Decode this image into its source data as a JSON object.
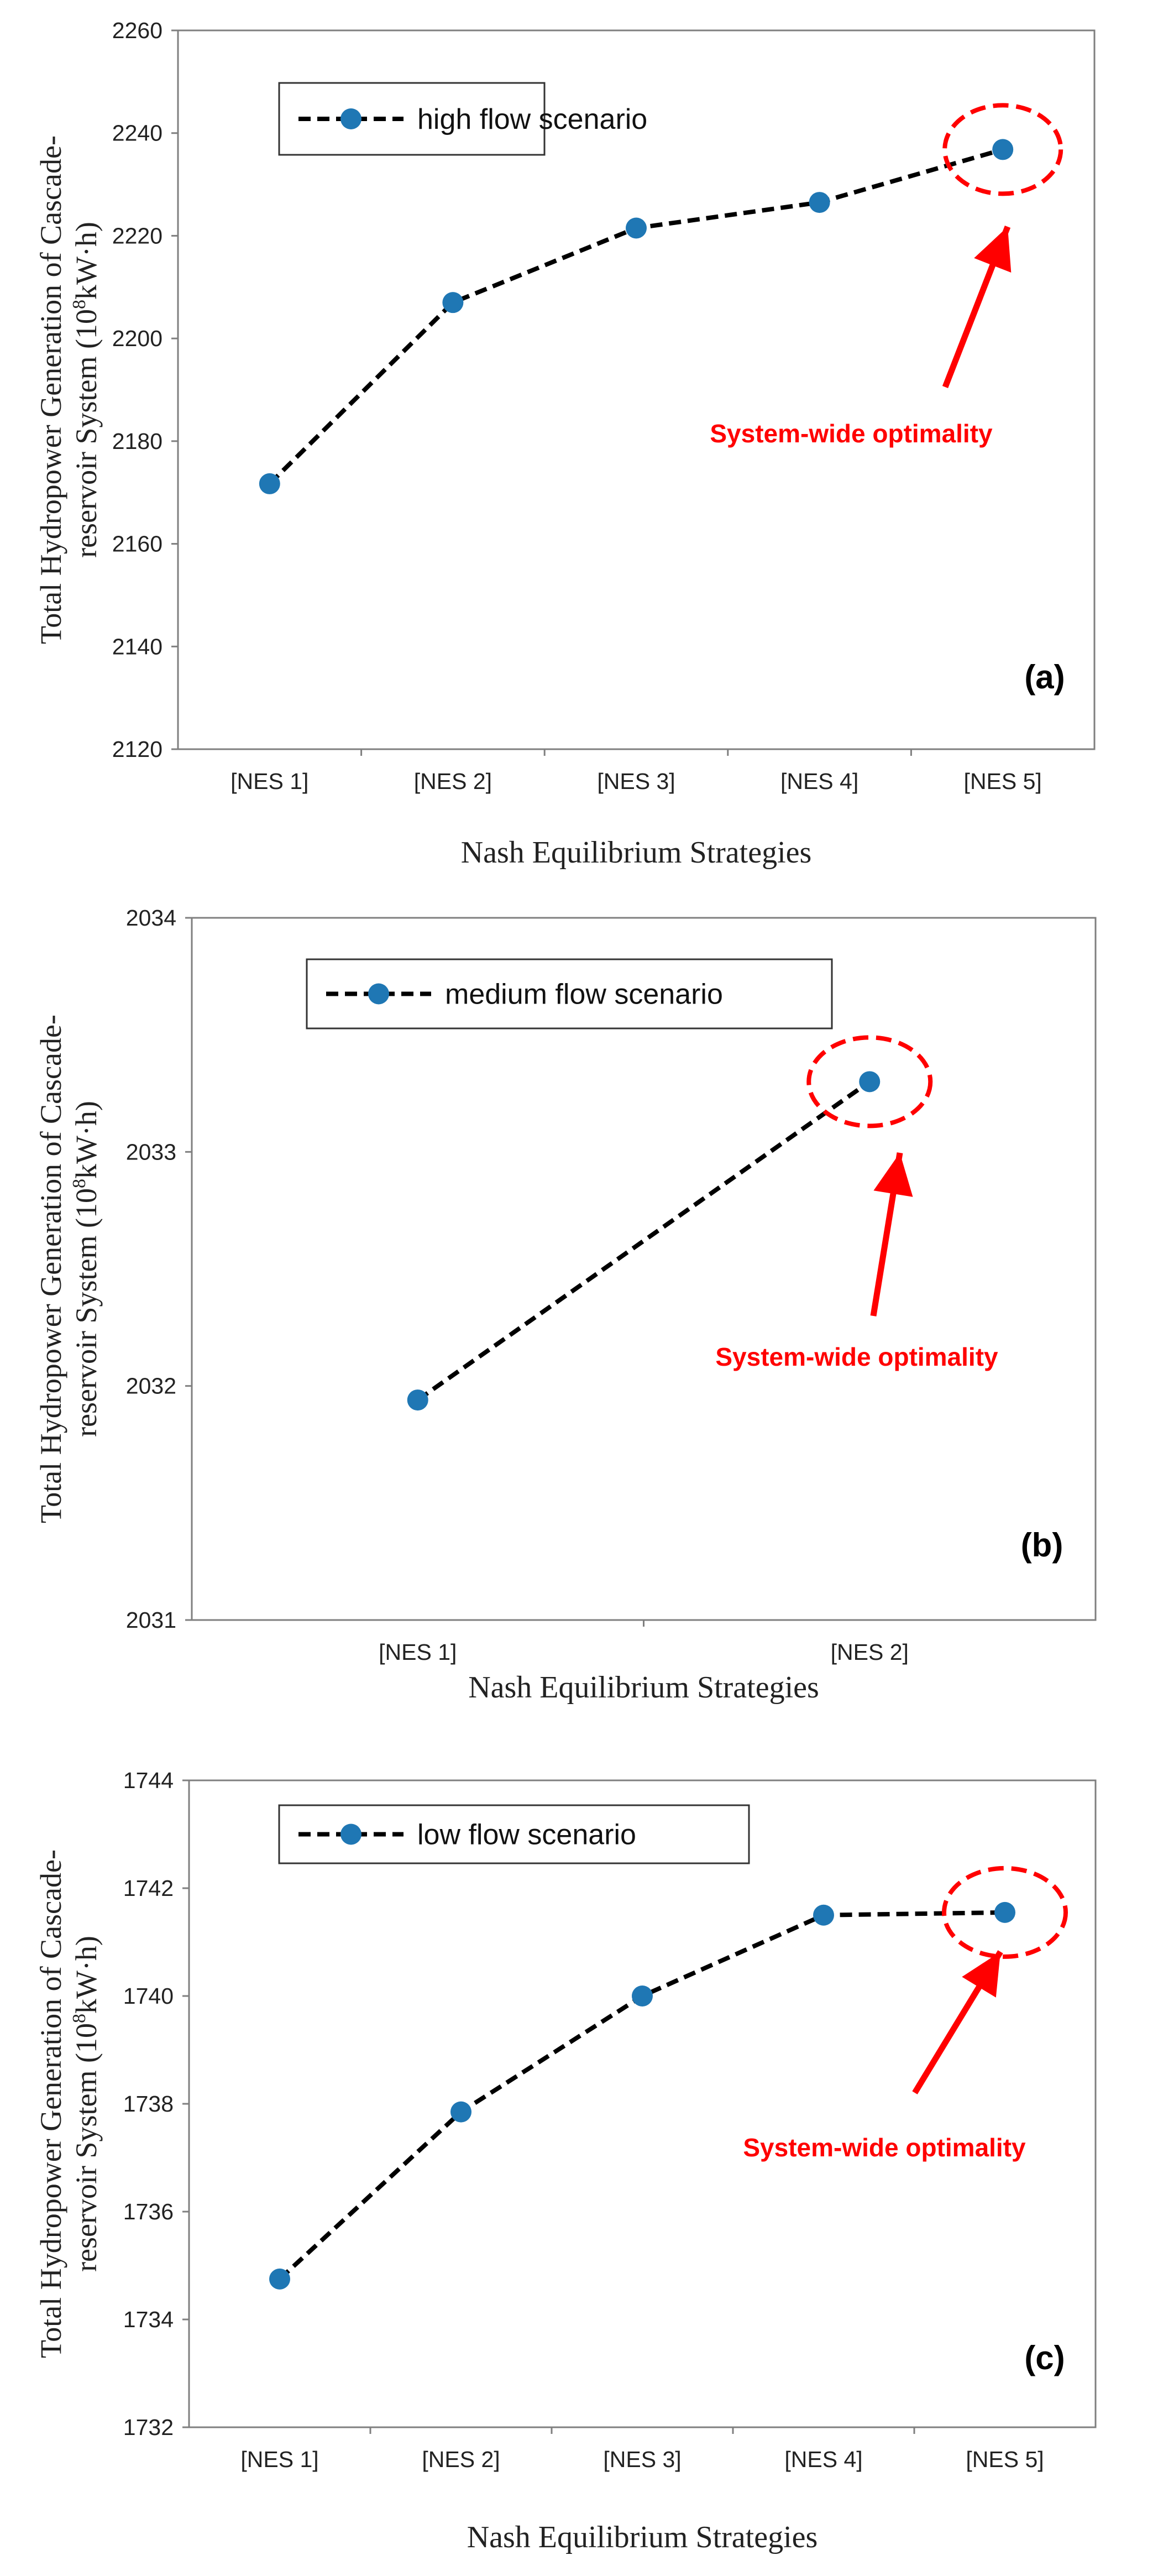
{
  "chart_data": [
    {
      "type": "line",
      "panel_label": "(a)",
      "series": [
        {
          "name": "high flow scenario",
          "values": [
            2171.7,
            2207.0,
            2221.5,
            2226.5,
            2236.8
          ]
        }
      ],
      "categories": [
        "[NES 1]",
        "[NES 2]",
        "[NES 3]",
        "[NES 4]",
        "[NES 5]"
      ],
      "ylim": [
        2120,
        2260
      ],
      "yticks": [
        2120,
        2140,
        2160,
        2180,
        2200,
        2220,
        2240,
        2260
      ],
      "ytick_labels": [
        "2120",
        "2140",
        "2160",
        "2180",
        "2200",
        "2220",
        "2240",
        "2260"
      ],
      "xlabel": "Nash Equilibrium Strategies",
      "ylabel_line1": "Total Hydropower Generation of Cascade-",
      "ylabel_line2_pre": "reservoir System (10",
      "ylabel_sup": "8",
      "ylabel_line2_post": "kW·h)",
      "annotation": "System-wide optimality",
      "highlight_index": 4,
      "legend_position": "top-left"
    },
    {
      "type": "line",
      "panel_label": "(b)",
      "series": [
        {
          "name": "medium flow scenario",
          "values": [
            2031.94,
            2033.3
          ]
        }
      ],
      "categories": [
        "[NES 1]",
        "[NES 2]"
      ],
      "ylim": [
        2031,
        2034
      ],
      "yticks": [
        2031,
        2032,
        2033,
        2034
      ],
      "ytick_labels": [
        "2031",
        "2032",
        "2033",
        "2034"
      ],
      "xlabel": "Nash Equilibrium Strategies",
      "ylabel_line1": "Total Hydropower Generation of Cascade-",
      "ylabel_line2_pre": "reservoir System (10",
      "ylabel_sup": "8",
      "ylabel_line2_post": "kW·h)",
      "annotation": "System-wide optimality",
      "highlight_index": 1,
      "legend_position": "top-left"
    },
    {
      "type": "line",
      "panel_label": "(c)",
      "series": [
        {
          "name": "low flow scenario",
          "values": [
            1734.75,
            1737.85,
            1740.0,
            1741.5,
            1741.55
          ]
        }
      ],
      "categories": [
        "[NES 1]",
        "[NES 2]",
        "[NES 3]",
        "[NES 4]",
        "[NES 5]"
      ],
      "ylim": [
        1732,
        1744
      ],
      "yticks": [
        1732,
        1734,
        1736,
        1738,
        1740,
        1742,
        1744
      ],
      "ytick_labels": [
        "1732",
        "1734",
        "1736",
        "1738",
        "1740",
        "1742",
        "1744"
      ],
      "xlabel": "Nash Equilibrium Strategies",
      "ylabel_line1": "Total Hydropower Generation of Cascade-",
      "ylabel_line2_pre": "reservoir System (10",
      "ylabel_sup": "8",
      "ylabel_line2_post": "kW·h)",
      "annotation": "System-wide optimality",
      "highlight_index": 4,
      "legend_position": "top-left"
    }
  ],
  "colors": {
    "marker": "#1f77b4",
    "line": "#000000",
    "highlight": "#ff0000",
    "axis": "#7f7f7f"
  }
}
